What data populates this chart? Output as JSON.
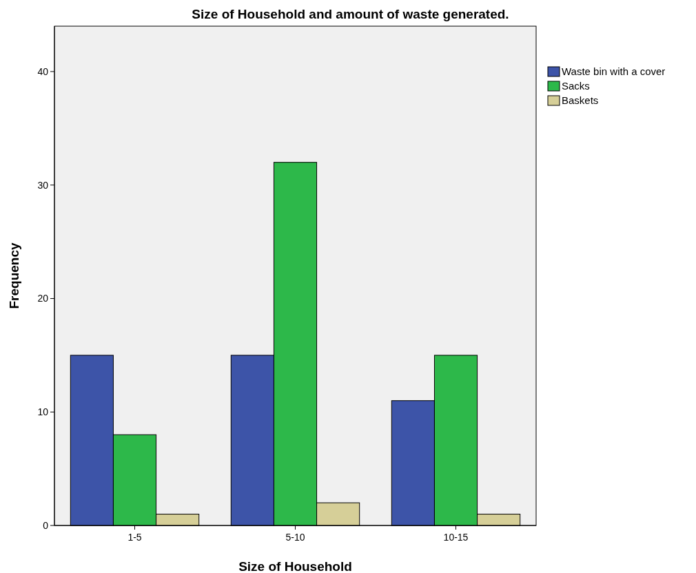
{
  "chart_data": {
    "type": "bar",
    "title": "Size of Household and amount of waste generated.",
    "xlabel": "Size of Household",
    "ylabel": "Frequency",
    "categories": [
      "1-5",
      "5-10",
      "10-15"
    ],
    "series": [
      {
        "name": "Waste bin with a cover",
        "color": "#3d54a8",
        "values": [
          15,
          15,
          11
        ]
      },
      {
        "name": "Sacks",
        "color": "#2db84a",
        "values": [
          8,
          32,
          15
        ]
      },
      {
        "name": "Baskets",
        "color": "#d6cf98",
        "values": [
          1,
          2,
          1
        ]
      }
    ],
    "ylim": [
      0,
      44
    ],
    "yticks": [
      0,
      10,
      20,
      30,
      40
    ],
    "grid": false,
    "legend": "top right"
  }
}
